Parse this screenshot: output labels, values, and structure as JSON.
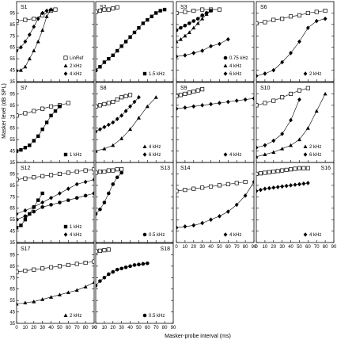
{
  "figure": {
    "xlabel": "Masker-probe interval (ms)",
    "ylabel": "Masker level (dB SPL)",
    "yticks": [
      35,
      45,
      55,
      65,
      75,
      85,
      95
    ],
    "xticks": [
      0,
      10,
      20,
      30,
      40,
      50,
      60,
      70,
      80,
      90
    ],
    "xlim": [
      0,
      90
    ],
    "ylim": [
      35,
      105
    ]
  },
  "chart_data": {
    "type": "scatter",
    "panels": [
      {
        "label": "S1",
        "legend": [
          {
            "marker": "open-square",
            "text": "LinRef"
          },
          {
            "marker": "triangle",
            "text": "2 kHz"
          },
          {
            "marker": "diamond",
            "text": "4 kHz"
          }
        ],
        "series": [
          {
            "marker": "open-square",
            "x": [
              0,
              10,
              20,
              30,
              40,
              45
            ],
            "y": [
              88,
              89,
              90,
              93,
              97,
              98
            ]
          },
          {
            "marker": "triangle",
            "x": [
              0,
              5,
              10,
              15,
              20,
              25,
              30,
              35,
              40
            ],
            "y": [
              45,
              45,
              48,
              55,
              62,
              70,
              80,
              92,
              98
            ]
          },
          {
            "marker": "diamond",
            "x": [
              0,
              5,
              10,
              15,
              20,
              25,
              30,
              35,
              40
            ],
            "y": [
              62,
              65,
              70,
              76,
              83,
              90,
              95,
              97,
              98
            ]
          }
        ]
      },
      {
        "label": "S2",
        "legend": [
          {
            "marker": "square",
            "text": "1.5 kHz"
          }
        ],
        "series": [
          {
            "marker": "open-square",
            "x": [
              0,
              5,
              10,
              15,
              20,
              25
            ],
            "y": [
              96,
              97,
              98,
              98,
              99,
              100
            ]
          },
          {
            "marker": "square",
            "x": [
              0,
              5,
              10,
              15,
              20,
              25,
              30,
              35,
              40,
              45,
              50,
              55,
              60,
              65,
              70,
              75,
              80
            ],
            "y": [
              45,
              48,
              52,
              55,
              58,
              62,
              66,
              70,
              74,
              78,
              82,
              86,
              89,
              92,
              95,
              97,
              98
            ]
          }
        ]
      },
      {
        "label": "S3",
        "legend": [
          {
            "marker": "circle",
            "text": "0.75 kHz"
          },
          {
            "marker": "triangle",
            "text": "4 kHz"
          },
          {
            "marker": "diamond",
            "text": "6 kHz"
          }
        ],
        "series": [
          {
            "marker": "open-square",
            "x": [
              0,
              10,
              20,
              30,
              40,
              50
            ],
            "y": [
              95,
              96,
              97,
              98,
              98,
              98
            ]
          },
          {
            "marker": "circle",
            "x": [
              0,
              5,
              10,
              15,
              20,
              25,
              30,
              35,
              40
            ],
            "y": [
              80,
              82,
              84,
              86,
              88,
              90,
              93,
              95,
              97
            ]
          },
          {
            "marker": "triangle",
            "x": [
              0,
              5,
              10,
              15,
              20,
              25,
              30,
              35,
              40
            ],
            "y": [
              70,
              72,
              75,
              78,
              82,
              86,
              90,
              94,
              97
            ]
          },
          {
            "marker": "diamond",
            "x": [
              0,
              10,
              20,
              30,
              40,
              50,
              60
            ],
            "y": [
              57,
              58,
              60,
              62,
              66,
              68,
              72
            ]
          }
        ]
      },
      {
        "label": "S6",
        "legend": [
          {
            "marker": "diamond",
            "text": "2 kHz"
          }
        ],
        "series": [
          {
            "marker": "open-square",
            "x": [
              0,
              10,
              20,
              30,
              40,
              50,
              60,
              70,
              80
            ],
            "y": [
              86,
              87,
              89,
              90,
              92,
              93,
              95,
              96,
              97
            ]
          },
          {
            "marker": "diamond",
            "x": [
              0,
              10,
              20,
              30,
              40,
              50,
              60,
              70,
              80
            ],
            "y": [
              40,
              42,
              45,
              52,
              60,
              70,
              82,
              88,
              90
            ]
          }
        ]
      },
      {
        "label": "S7",
        "legend": [
          {
            "marker": "square",
            "text": "1 kHz"
          }
        ],
        "series": [
          {
            "marker": "open-square",
            "x": [
              0,
              10,
              20,
              30,
              40,
              50,
              60
            ],
            "y": [
              76,
              78,
              80,
              82,
              84,
              85,
              87
            ]
          },
          {
            "marker": "square",
            "x": [
              0,
              5,
              10,
              15,
              20,
              25,
              30,
              35,
              40,
              45,
              50
            ],
            "y": [
              45,
              46,
              48,
              50,
              54,
              58,
              64,
              70,
              76,
              80,
              84
            ]
          }
        ]
      },
      {
        "label": "S8",
        "legend": [
          {
            "marker": "triangle",
            "text": "4 kHz"
          },
          {
            "marker": "diamond",
            "text": "6 kHz"
          }
        ],
        "series": [
          {
            "marker": "open-square",
            "x": [
              0,
              5,
              10,
              15,
              20,
              25,
              30,
              35,
              40
            ],
            "y": [
              84,
              85,
              86,
              87,
              88,
              90,
              92,
              93,
              94
            ]
          },
          {
            "marker": "triangle",
            "x": [
              0,
              10,
              20,
              30,
              40,
              50,
              60,
              70
            ],
            "y": [
              45,
              47,
              50,
              56,
              64,
              74,
              84,
              92
            ]
          },
          {
            "marker": "diamond",
            "x": [
              0,
              5,
              10,
              15,
              20,
              25,
              30,
              35,
              40,
              45,
              50
            ],
            "y": [
              62,
              64,
              66,
              68,
              70,
              73,
              76,
              80,
              84,
              88,
              92
            ]
          }
        ]
      },
      {
        "label": "S9",
        "legend": [
          {
            "marker": "diamond",
            "text": "4 kHz"
          }
        ],
        "series": [
          {
            "marker": "open-square",
            "x": [
              0,
              5,
              10,
              15,
              20,
              25,
              30
            ],
            "y": [
              93,
              94,
              95,
              96,
              97,
              98,
              99
            ]
          },
          {
            "marker": "diamond",
            "x": [
              0,
              10,
              20,
              30,
              40,
              50,
              60,
              70,
              80,
              90
            ],
            "y": [
              82,
              83,
              84,
              85,
              86,
              87,
              88,
              89,
              90,
              91
            ]
          }
        ]
      },
      {
        "label": "S10",
        "legend": [
          {
            "marker": "triangle",
            "text": "2 kHz"
          },
          {
            "marker": "diamond",
            "text": "6 kHz"
          }
        ],
        "series": [
          {
            "marker": "open-square",
            "x": [
              0,
              10,
              20,
              30,
              40,
              50,
              60
            ],
            "y": [
              85,
              87,
              89,
              92,
              95,
              98,
              100
            ]
          },
          {
            "marker": "triangle",
            "x": [
              0,
              10,
              20,
              30,
              40,
              50,
              60,
              70,
              80
            ],
            "y": [
              40,
              42,
              44,
              47,
              50,
              55,
              65,
              80,
              95
            ]
          },
          {
            "marker": "diamond",
            "x": [
              0,
              10,
              20,
              30,
              40,
              50
            ],
            "y": [
              48,
              50,
              54,
              60,
              72,
              90
            ]
          }
        ]
      },
      {
        "label": "S12",
        "legend": [
          {
            "marker": "square",
            "text": "1 kHz"
          },
          {
            "marker": "diamond",
            "text": "4 kHz"
          }
        ],
        "series": [
          {
            "marker": "open-square",
            "x": [
              0,
              10,
              20,
              30,
              40,
              50,
              60,
              70,
              80,
              90
            ],
            "y": [
              90,
              91,
              92,
              93,
              94,
              95,
              96,
              97,
              98,
              99
            ]
          },
          {
            "marker": "square",
            "x": [
              0,
              5,
              10,
              15,
              20,
              25,
              30
            ],
            "y": [
              48,
              50,
              55,
              60,
              66,
              72,
              78
            ]
          },
          {
            "marker": "diamond",
            "x": [
              0,
              10,
              20,
              30,
              40,
              50,
              60,
              70,
              80,
              90
            ],
            "y": [
              60,
              63,
              66,
              70,
              74,
              78,
              82,
              86,
              88,
              90
            ]
          },
          {
            "marker": "circle",
            "x": [
              0,
              10,
              20,
              30,
              40,
              50,
              60,
              70,
              80,
              90
            ],
            "y": [
              55,
              58,
              62,
              66,
              68,
              70,
              72,
              74,
              76,
              78
            ]
          }
        ]
      },
      {
        "label": "S13",
        "legend": [
          {
            "marker": "circle",
            "text": "0.5 kHz"
          }
        ],
        "series": [
          {
            "marker": "open-square",
            "x": [
              0,
              5,
              10,
              15,
              20,
              25,
              30
            ],
            "y": [
              96,
              97,
              97,
              98,
              98,
              99,
              99
            ]
          },
          {
            "marker": "circle",
            "x": [
              0,
              5,
              10,
              15,
              20,
              25,
              30
            ],
            "y": [
              60,
              64,
              70,
              78,
              86,
              92,
              96
            ]
          }
        ]
      },
      {
        "label": "S14",
        "legend": [
          {
            "marker": "diamond",
            "text": "4 kHz"
          }
        ],
        "series": [
          {
            "marker": "open-square",
            "x": [
              0,
              10,
              20,
              30,
              40,
              50,
              60,
              70,
              80
            ],
            "y": [
              80,
              81,
              82,
              83,
              84,
              85,
              86,
              87,
              88
            ]
          },
          {
            "marker": "diamond",
            "x": [
              0,
              10,
              20,
              30,
              40,
              50,
              60,
              70,
              80,
              90
            ],
            "y": [
              48,
              49,
              50,
              52,
              55,
              58,
              62,
              68,
              76,
              88
            ]
          }
        ]
      },
      {
        "label": "S16",
        "legend": [
          {
            "marker": "diamond",
            "text": "4 kHz"
          }
        ],
        "series": [
          {
            "marker": "open-square",
            "x": [
              0,
              5,
              10,
              15,
              20,
              25,
              30,
              35,
              40,
              45,
              50,
              55,
              60
            ],
            "y": [
              95,
              95.5,
              96,
              96.5,
              97,
              97.5,
              98,
              98.5,
              99,
              99.5,
              100,
              100,
              100
            ]
          },
          {
            "marker": "diamond",
            "x": [
              0,
              5,
              10,
              15,
              20,
              25,
              30,
              35,
              40,
              45,
              50,
              55,
              60
            ],
            "y": [
              80,
              81,
              82,
              82.5,
              83,
              83.5,
              84,
              84.5,
              85,
              85.5,
              86,
              86.5,
              87
            ]
          }
        ]
      },
      {
        "label": "S17",
        "legend": [
          {
            "marker": "triangle",
            "text": "2 kHz"
          }
        ],
        "series": [
          {
            "marker": "open-square",
            "x": [
              0,
              10,
              20,
              30,
              40,
              50,
              60,
              70,
              80,
              90
            ],
            "y": [
              80,
              81,
              82,
              83,
              84,
              85,
              86,
              87,
              88,
              89
            ]
          },
          {
            "marker": "triangle",
            "x": [
              0,
              10,
              20,
              30,
              40,
              50,
              60,
              70,
              80,
              90
            ],
            "y": [
              52,
              53,
              54,
              56,
              58,
              60,
              62,
              64,
              67,
              71
            ]
          }
        ]
      },
      {
        "label": "S18",
        "legend": [
          {
            "marker": "circle",
            "text": "0.5 kHz"
          }
        ],
        "series": [
          {
            "marker": "open-square",
            "x": [
              0,
              5,
              10,
              15
            ],
            "y": [
              98,
              98.5,
              99,
              99.5
            ]
          },
          {
            "marker": "circle",
            "x": [
              0,
              5,
              10,
              15,
              20,
              25,
              30,
              35,
              40,
              45,
              50,
              55,
              60
            ],
            "y": [
              68,
              72,
              75,
              78,
              80,
              82,
              83,
              84,
              85,
              86,
              86.5,
              87,
              87.5
            ]
          }
        ]
      }
    ]
  }
}
